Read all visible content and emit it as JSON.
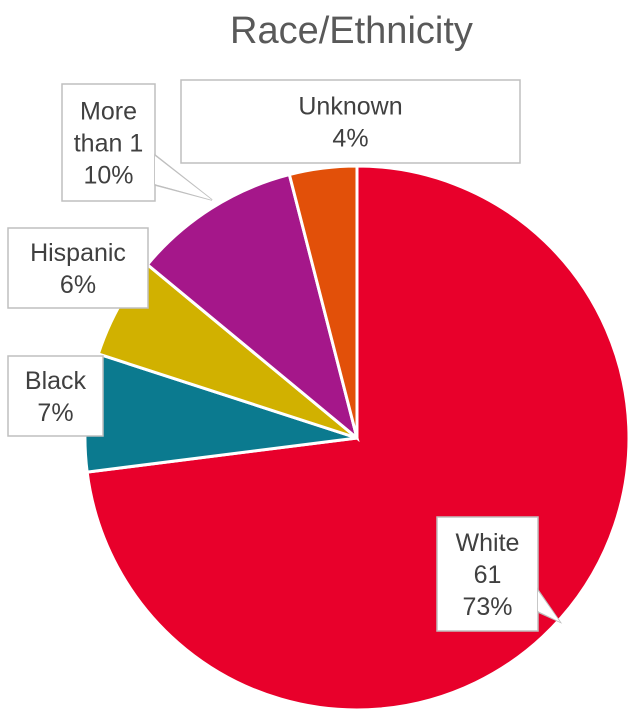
{
  "chart_data": {
    "type": "pie",
    "title": "Race/Ethnicity",
    "slices": [
      {
        "label": "White",
        "value": 61,
        "percent": "73%",
        "value_text": "61",
        "color": "#E8002B"
      },
      {
        "label": "Black",
        "percent": "7%",
        "color": "#0B7A8F"
      },
      {
        "label": "Hispanic",
        "percent": "6%",
        "color": "#D1B100"
      },
      {
        "label": "More than 1",
        "label_lines": [
          "More",
          "than 1"
        ],
        "percent": "10%",
        "color": "#A5178A"
      },
      {
        "label": "Unknown",
        "percent": "4%",
        "color": "#E25009"
      }
    ],
    "percent_values": [
      73,
      7,
      6,
      10,
      4
    ],
    "legend": "none"
  }
}
